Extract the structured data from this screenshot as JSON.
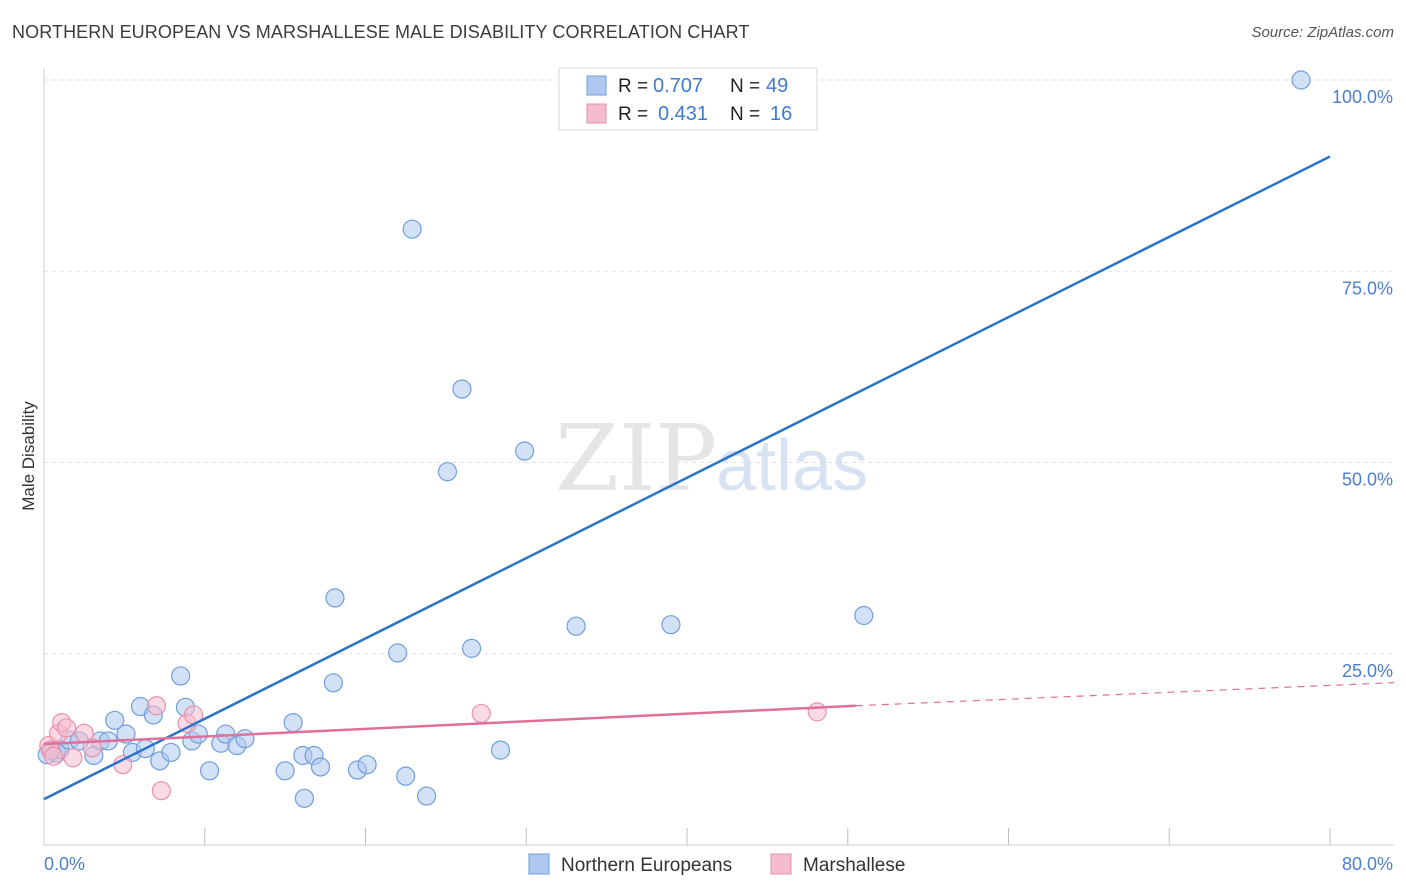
{
  "title": "NORTHERN EUROPEAN VS MARSHALLESE MALE DISABILITY CORRELATION CHART",
  "source": "Source: ZipAtlas.com",
  "watermark": {
    "zip": "ZIP",
    "atlas": "atlas"
  },
  "colors": {
    "blue_fill": "#aec8f0",
    "blue_stroke": "#6f9fdc",
    "blue_line": "#2a74cf",
    "pink_fill": "#f5bccd",
    "pink_stroke": "#e891ab",
    "pink_line": "#e0709a",
    "tick_label": "#4a7fcf",
    "grid": "#e0e0e0"
  },
  "legend": {
    "rows": [
      {
        "r_label": "R =",
        "r_value": "0.707",
        "n_label": "N =",
        "n_value": "49"
      },
      {
        "r_label": "R =",
        "r_value": "0.431",
        "n_label": "N =",
        "n_value": "16"
      }
    ]
  },
  "bottom_legend": [
    "Northern Europeans",
    "Marshallese"
  ],
  "chart_data": {
    "type": "scatter",
    "title": "NORTHERN EUROPEAN VS MARSHALLESE MALE DISABILITY CORRELATION CHART",
    "xlabel": "",
    "ylabel": "Male Disability",
    "xlim": [
      0,
      80
    ],
    "ylim": [
      0,
      100
    ],
    "x_tick_labels": [
      "0.0%",
      "80.0%"
    ],
    "y_ticks": [
      25,
      50,
      75,
      100
    ],
    "y_tick_labels": [
      "25.0%",
      "50.0%",
      "75.0%",
      "100.0%"
    ],
    "grid": true,
    "legend_position": "top-center",
    "series": [
      {
        "name": "Northern Europeans",
        "r": 0.707,
        "n": 49,
        "trend": {
          "x": [
            0,
            80
          ],
          "y": [
            6.0,
            90.0
          ]
        },
        "points": [
          [
            0.2,
            11.8
          ],
          [
            0.5,
            12.3
          ],
          [
            0.8,
            12.0
          ],
          [
            1.0,
            12.5
          ],
          [
            1.6,
            13.7
          ],
          [
            2.2,
            13.6
          ],
          [
            3.1,
            11.7
          ],
          [
            3.5,
            13.6
          ],
          [
            4.0,
            13.6
          ],
          [
            4.4,
            16.3
          ],
          [
            5.1,
            14.5
          ],
          [
            5.5,
            12.1
          ],
          [
            6.0,
            18.1
          ],
          [
            6.3,
            12.6
          ],
          [
            6.8,
            17.0
          ],
          [
            7.2,
            11.0
          ],
          [
            7.9,
            12.1
          ],
          [
            8.5,
            22.1
          ],
          [
            8.8,
            18.0
          ],
          [
            9.2,
            13.6
          ],
          [
            9.6,
            14.5
          ],
          [
            10.3,
            9.7
          ],
          [
            11.0,
            13.3
          ],
          [
            11.3,
            14.5
          ],
          [
            12.0,
            13.0
          ],
          [
            12.5,
            13.9
          ],
          [
            15.0,
            9.7
          ],
          [
            15.5,
            16.0
          ],
          [
            16.1,
            11.7
          ],
          [
            16.2,
            6.1
          ],
          [
            16.8,
            11.7
          ],
          [
            17.2,
            10.2
          ],
          [
            18.0,
            21.2
          ],
          [
            18.1,
            32.3
          ],
          [
            19.5,
            9.8
          ],
          [
            20.1,
            10.5
          ],
          [
            22.0,
            25.1
          ],
          [
            22.5,
            9.0
          ],
          [
            22.9,
            80.5
          ],
          [
            23.8,
            6.4
          ],
          [
            25.1,
            48.8
          ],
          [
            26.0,
            59.6
          ],
          [
            26.6,
            25.7
          ],
          [
            28.4,
            12.4
          ],
          [
            29.9,
            51.5
          ],
          [
            33.1,
            28.6
          ],
          [
            39.0,
            28.8
          ],
          [
            51.0,
            30.0
          ],
          [
            78.2,
            100.0
          ]
        ]
      },
      {
        "name": "Marshallese",
        "r": 0.431,
        "n": 16,
        "trend": {
          "x": [
            0,
            50.5
          ],
          "y": [
            13.2,
            18.2
          ],
          "dashed_to": [
            80,
            21.2
          ]
        },
        "points": [
          [
            0.3,
            13.0
          ],
          [
            0.4,
            12.4
          ],
          [
            0.6,
            11.6
          ],
          [
            0.9,
            14.6
          ],
          [
            1.1,
            16.0
          ],
          [
            1.4,
            15.3
          ],
          [
            1.8,
            11.4
          ],
          [
            2.5,
            14.6
          ],
          [
            3.0,
            12.7
          ],
          [
            4.9,
            10.5
          ],
          [
            7.0,
            18.2
          ],
          [
            7.3,
            7.1
          ],
          [
            8.9,
            15.9
          ],
          [
            9.3,
            17.0
          ],
          [
            27.2,
            17.2
          ],
          [
            48.1,
            17.4
          ]
        ]
      }
    ]
  }
}
